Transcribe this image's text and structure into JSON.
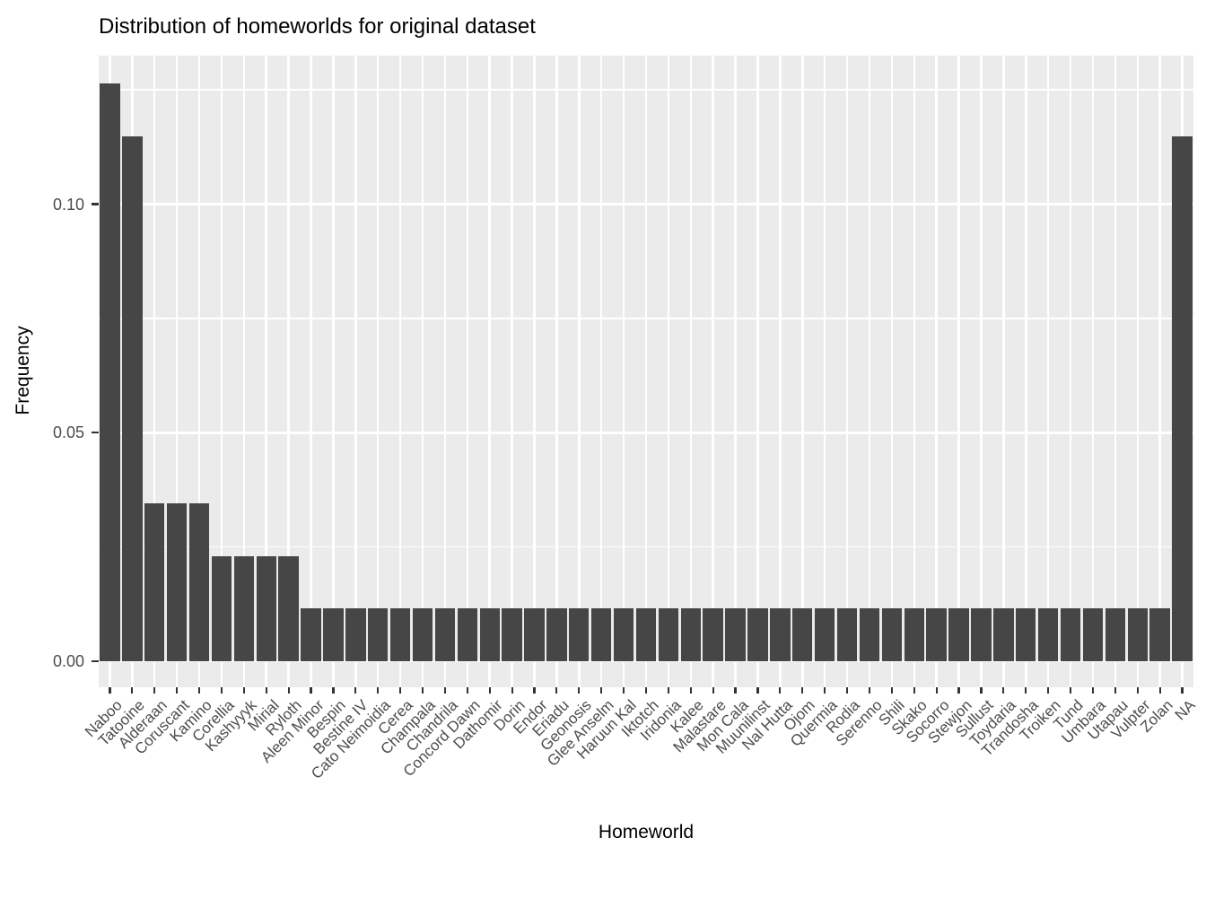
{
  "title": "Distribution of homeworlds for original dataset",
  "chart_data": {
    "type": "bar",
    "title": "Distribution of homeworlds for original dataset",
    "xlabel": "Homeworld",
    "ylabel": "Frequency",
    "legend": "none",
    "grid": "white major and minor gridlines on gray panel",
    "ylim": [
      -0.0063,
      0.1327
    ],
    "y_tick_labels": [
      "0.00",
      "0.05",
      "0.10"
    ],
    "y_tick_values": [
      0,
      0.05,
      0.1
    ],
    "y_minor_values": [
      0.025,
      0.075,
      0.125
    ],
    "categories": [
      "Naboo",
      "Tatooine",
      "Alderaan",
      "Coruscant",
      "Kamino",
      "Corellia",
      "Kashyyyk",
      "Mirial",
      "Ryloth",
      "Aleen Minor",
      "Bespin",
      "Bestine IV",
      "Cato Neimoidia",
      "Cerea",
      "Champala",
      "Chandrila",
      "Concord Dawn",
      "Dathomir",
      "Dorin",
      "Endor",
      "Eriadu",
      "Geonosis",
      "Glee Anselm",
      "Haruun Kal",
      "Iktotch",
      "Iridonia",
      "Kalee",
      "Malastare",
      "Mon Cala",
      "Muunilinst",
      "Nal Hutta",
      "Ojom",
      "Quermia",
      "Rodia",
      "Serenno",
      "Shili",
      "Skako",
      "Socorro",
      "Stewjon",
      "Sullust",
      "Toydaria",
      "Trandosha",
      "Troiken",
      "Tund",
      "Umbara",
      "Utapau",
      "Vulpter",
      "Zolan",
      "NA"
    ],
    "counts": [
      11,
      10,
      3,
      3,
      3,
      2,
      2,
      2,
      2,
      1,
      1,
      1,
      1,
      1,
      1,
      1,
      1,
      1,
      1,
      1,
      1,
      1,
      1,
      1,
      1,
      1,
      1,
      1,
      1,
      1,
      1,
      1,
      1,
      1,
      1,
      1,
      1,
      1,
      1,
      1,
      1,
      1,
      1,
      1,
      1,
      1,
      1,
      1,
      10
    ],
    "values": [
      0.1264,
      0.1149,
      0.0345,
      0.0345,
      0.0345,
      0.023,
      0.023,
      0.023,
      0.023,
      0.0115,
      0.0115,
      0.0115,
      0.0115,
      0.0115,
      0.0115,
      0.0115,
      0.0115,
      0.0115,
      0.0115,
      0.0115,
      0.0115,
      0.0115,
      0.0115,
      0.0115,
      0.0115,
      0.0115,
      0.0115,
      0.0115,
      0.0115,
      0.0115,
      0.0115,
      0.0115,
      0.0115,
      0.0115,
      0.0115,
      0.0115,
      0.0115,
      0.0115,
      0.0115,
      0.0115,
      0.0115,
      0.0115,
      0.0115,
      0.0115,
      0.0115,
      0.0115,
      0.0115,
      0.0115,
      0.1149
    ],
    "colors": {
      "bar": "#464646",
      "panel_bg": "#EBEBEB",
      "gridline": "#FFFFFF",
      "axis_text": "#4D4D4D",
      "tick_mark": "#333333",
      "title_text": "#000000",
      "page_bg": "#FFFFFF"
    }
  }
}
